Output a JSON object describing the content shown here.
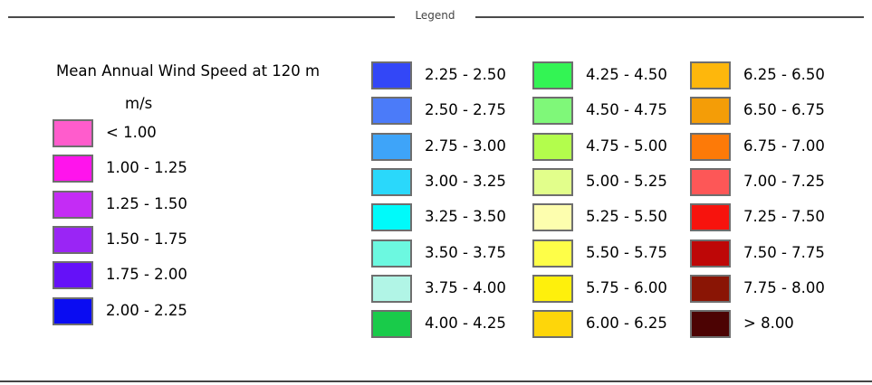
{
  "legend": {
    "title": "Legend",
    "heading": "Mean Annual Wind Speed at 120 m",
    "units": "m/s",
    "columns": [
      [
        {
          "label": "< 1.00",
          "color": "#ff5ccc"
        },
        {
          "label": "1.00 - 1.25",
          "color": "#ff14ec"
        },
        {
          "label": "1.25 - 1.50",
          "color": "#c42cf5"
        },
        {
          "label": "1.50 - 1.75",
          "color": "#9a25f5"
        },
        {
          "label": "1.75 - 2.00",
          "color": "#6511f8"
        },
        {
          "label": "2.00 - 2.25",
          "color": "#0a0cf2"
        }
      ],
      [
        {
          "label": "2.25 - 2.50",
          "color": "#3347f7"
        },
        {
          "label": "2.50 - 2.75",
          "color": "#4b7bf9"
        },
        {
          "label": "2.75 - 3.00",
          "color": "#3ea4f9"
        },
        {
          "label": "3.00 - 3.25",
          "color": "#2ad8fb"
        },
        {
          "label": "3.25 - 3.50",
          "color": "#00fafa"
        },
        {
          "label": "3.50 - 3.75",
          "color": "#6cf8e0"
        },
        {
          "label": "3.75 - 4.00",
          "color": "#b1f5e6"
        },
        {
          "label": "4.00 - 4.25",
          "color": "#19cb4a"
        }
      ],
      [
        {
          "label": "4.25 - 4.50",
          "color": "#33f454"
        },
        {
          "label": "4.50 - 4.75",
          "color": "#7ff879"
        },
        {
          "label": "4.75 - 5.00",
          "color": "#b3fd4c"
        },
        {
          "label": "5.00 - 5.25",
          "color": "#e2fe8b"
        },
        {
          "label": "5.25 - 5.50",
          "color": "#fdfeae"
        },
        {
          "label": "5.50 - 5.75",
          "color": "#fefe48"
        },
        {
          "label": "5.75 - 6.00",
          "color": "#fef00c"
        },
        {
          "label": "6.00 - 6.25",
          "color": "#fed60a"
        }
      ],
      [
        {
          "label": "6.25 - 6.50",
          "color": "#feb70c"
        },
        {
          "label": "6.50 - 6.75",
          "color": "#f49d07"
        },
        {
          "label": "6.75 - 7.00",
          "color": "#fd7a08"
        },
        {
          "label": "7.00 - 7.25",
          "color": "#fd5757"
        },
        {
          "label": "7.25 - 7.50",
          "color": "#f7130d"
        },
        {
          "label": "7.50 - 7.75",
          "color": "#be0707"
        },
        {
          "label": "7.75 - 8.00",
          "color": "#8a1505"
        },
        {
          "label": "> 8.00",
          "color": "#4c0303"
        }
      ]
    ]
  }
}
